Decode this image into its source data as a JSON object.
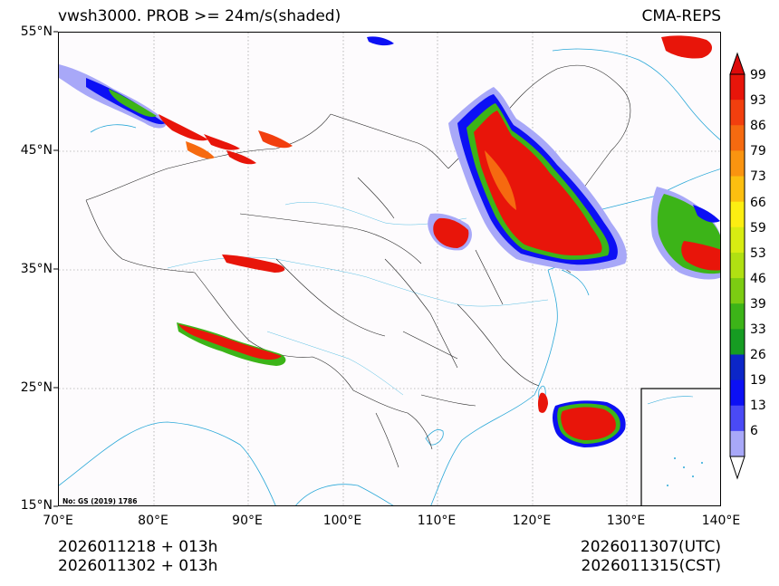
{
  "header": {
    "title": "vwsh3000. PROB >= 24m/s(shaded)",
    "model": "CMA-REPS"
  },
  "map": {
    "projection": "lat-lon",
    "lat_ticks": [
      "55°N",
      "45°N",
      "35°N",
      "25°N",
      "15°N"
    ],
    "lon_ticks": [
      "70°E",
      "80°E",
      "90°E",
      "100°E",
      "110°E",
      "120°E",
      "130°E",
      "140°E"
    ],
    "extent": {
      "lon": [
        70,
        140
      ],
      "lat": [
        15,
        55
      ]
    },
    "map_approval_note": "No: GS (2019) 1786",
    "inset": "South China Sea islands"
  },
  "colorbar": {
    "labels": [
      "99",
      "93",
      "86",
      "79",
      "73",
      "66",
      "59",
      "53",
      "46",
      "39",
      "33",
      "26",
      "19",
      "13",
      "6"
    ],
    "colors": [
      "#e8150a",
      "#f23f0e",
      "#f66a10",
      "#fa9410",
      "#fcbf10",
      "#fcee12",
      "#d8ec12",
      "#b0e012",
      "#7ccc12",
      "#3cb418",
      "#169c22",
      "#0c26c8",
      "#0c10f4",
      "#4a4af6",
      "#a8a8f8"
    ],
    "top_color": "#dd0a0a"
  },
  "footer": {
    "init_time": "2026011218  +  013h",
    "init_time_cst": "2026011302  +  013h",
    "valid_utc": "2026011307(UTC)",
    "valid_cst": "2026011315(CST)"
  }
}
